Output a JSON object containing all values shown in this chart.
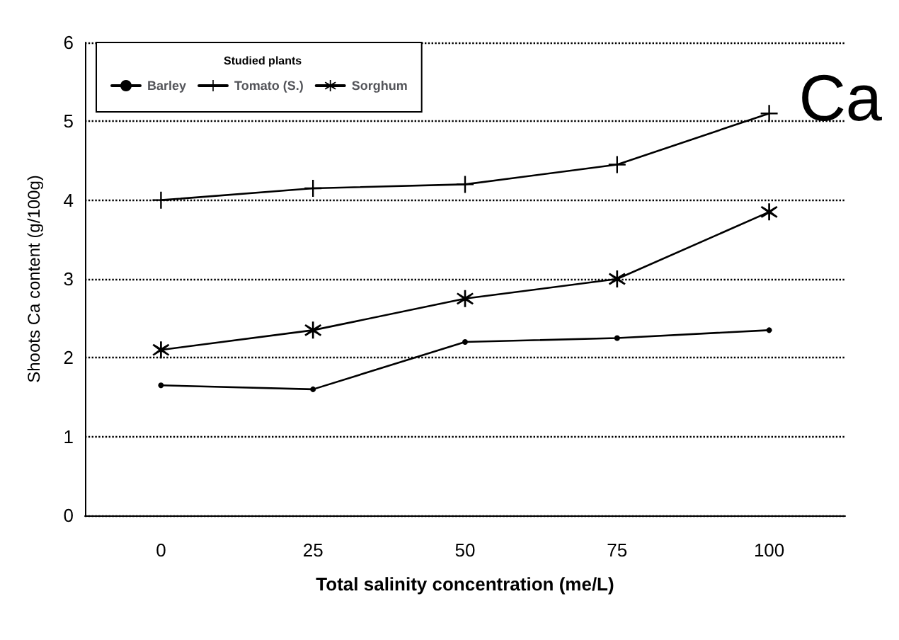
{
  "chart_data": {
    "type": "line",
    "xlabel": "Total salinity concentration (me/L)",
    "ylabel": "Shoots Ca content (g/100g)",
    "legend_title": "Studied plants",
    "annotations": [
      "Ca"
    ],
    "categories": [
      "0",
      "25",
      "50",
      "75",
      "100"
    ],
    "series": [
      {
        "name": "Barley",
        "color": "#000000",
        "marker": "circle",
        "values": [
          1.65,
          1.6,
          2.2,
          2.25,
          2.35
        ]
      },
      {
        "name": "Tomato (S.)",
        "color": "#000000",
        "marker": "cross",
        "values": [
          4.0,
          4.15,
          4.2,
          4.45,
          5.1
        ]
      },
      {
        "name": "Sorghum",
        "color": "#000000",
        "marker": "star",
        "values": [
          2.1,
          2.35,
          2.75,
          3.0,
          3.85
        ]
      }
    ],
    "ylim": [
      0,
      6
    ],
    "yticks": [
      0,
      1,
      2,
      3,
      4,
      5,
      6
    ],
    "grid": "y",
    "legend": "top left",
    "line_style": "solid"
  }
}
